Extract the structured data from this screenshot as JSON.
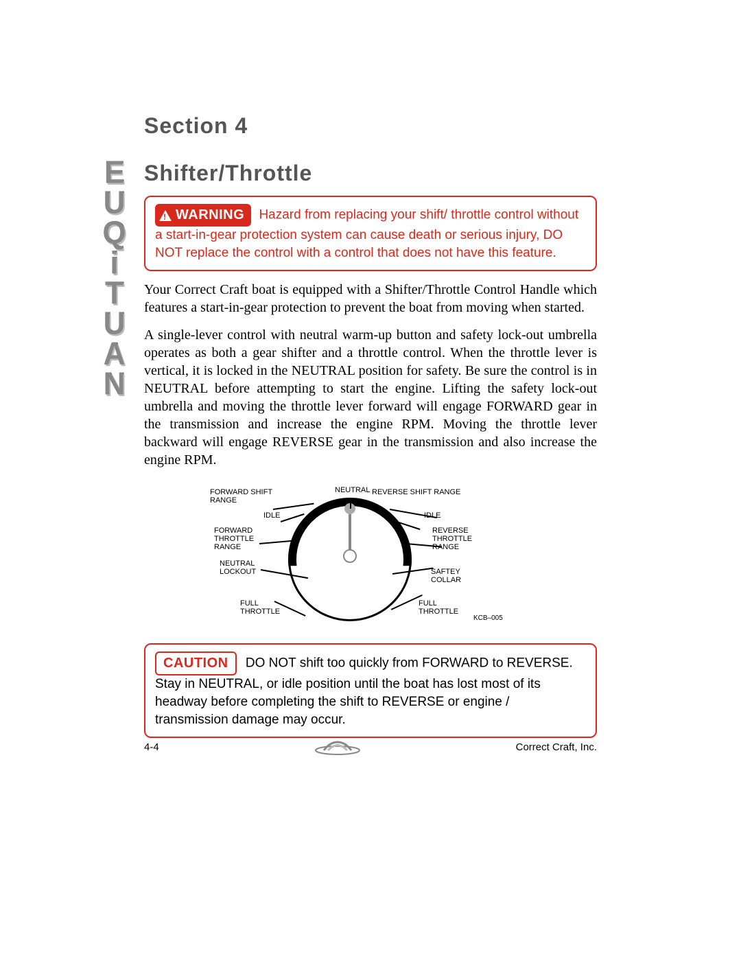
{
  "section_label": "Section 4",
  "section_title": "Shifter/Throttle",
  "warning": {
    "badge": "WARNING",
    "text": "Hazard from replacing your shift/ throttle control without a start-in-gear protection system can cause death or serious injury, DO NOT replace the control with a control that does not have this feature.",
    "border_color": "#d9291c",
    "text_color": "#d9291c",
    "badge_bg": "#d9291c",
    "badge_fg": "#ffffff"
  },
  "paragraphs": {
    "p1": "Your Correct Craft boat is equipped with a Shifter/Throttle Control Handle which features a start-in-gear protection to prevent the boat from moving when started.",
    "p2": "A single-lever control with neutral warm-up button and safety lock-out umbrella operates as both a gear shifter and a throttle control. When the throttle lever is vertical, it is locked in the NEUTRAL position for safety. Be sure the control is in NEUTRAL before attempting to start the engine. Lifting the safety lock-out umbrella and moving the throttle lever forward will engage FORWARD gear in the transmission and increase the engine RPM. Moving the throttle lever backward will engage REVERSE gear in the transmission and also increase the engine RPM."
  },
  "diagram": {
    "labels": {
      "forward_shift_range": "FORWARD SHIFT\nRANGE",
      "neutral_top": "NEUTRAL",
      "reverse_shift_range": "REVERSE SHIFT RANGE",
      "idle_left": "IDLE",
      "idle_right": "IDLE",
      "forward_throttle_range": "FORWARD\nTHROTTLE\nRANGE",
      "reverse_throttle_range": "REVERSE\nTHROTTLE\nRANGE",
      "neutral_lockout": "NEUTRAL\nLOCKOUT",
      "safety_collar": "SAFTEY\nCOLLAR",
      "full_throttle_left": "FULL\nTHROTTLE",
      "full_throttle_right": "FULL\nTHROTTLE"
    },
    "ref": "KCB–005",
    "circle_color": "#000000",
    "arc_color": "#000000",
    "label_font_size": 11
  },
  "caution": {
    "badge": "CAUTION",
    "text": "DO NOT shift too quickly from FORWARD to REVERSE. Stay in NEUTRAL, or idle position until the boat has lost most of its headway before completing the shift to REVERSE or engine / transmission damage may occur.",
    "border_color": "#d9291c",
    "badge_color": "#d9291c"
  },
  "footer": {
    "page_num": "4-4",
    "company": "Correct Craft, Inc."
  },
  "side_brand": {
    "letters": [
      "N",
      "A",
      "U",
      "T",
      "I",
      "Q",
      "U",
      "E"
    ],
    "text": "NAUTIQUE"
  },
  "colors": {
    "heading_gray": "#555555",
    "body_text": "#000000",
    "red": "#d9291c",
    "page_bg": "#ffffff"
  },
  "typography": {
    "heading_font": "Arial",
    "heading_size_pt": 24,
    "body_font": "Georgia",
    "body_size_pt": 15,
    "callout_font": "Arial",
    "callout_size_pt": 14,
    "diagram_label_size_pt": 8
  }
}
